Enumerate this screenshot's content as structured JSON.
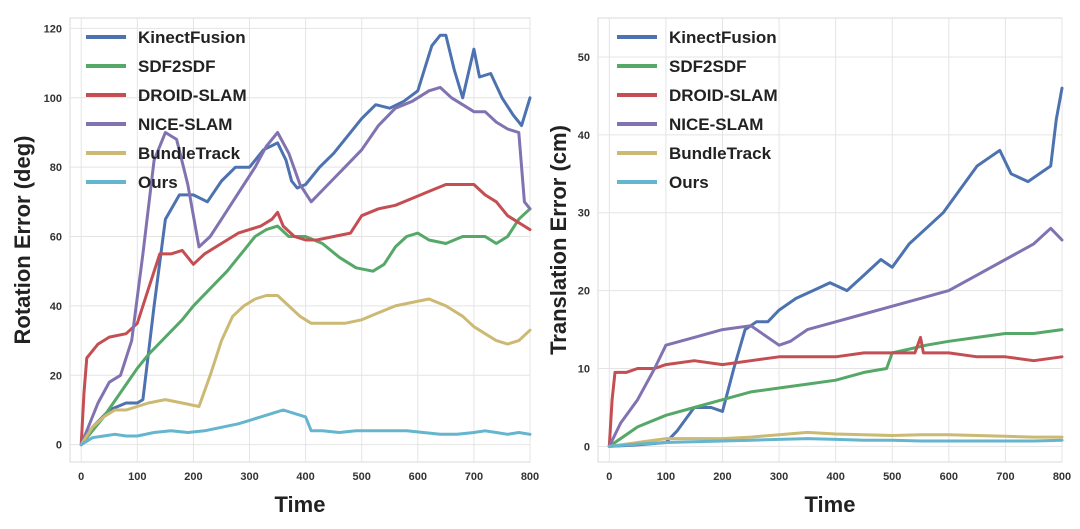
{
  "chart_data": [
    {
      "type": "line",
      "xlabel": "Time",
      "ylabel": "Rotation Error (deg)",
      "xlim": [
        -20,
        800
      ],
      "ylim": [
        -5,
        123
      ],
      "xticks": [
        0,
        100,
        200,
        300,
        400,
        500,
        600,
        700,
        800
      ],
      "yticks": [
        0,
        20,
        40,
        60,
        80,
        100,
        120
      ],
      "grid": true,
      "legend": "top-left",
      "series": [
        {
          "name": "KinectFusion",
          "color": "#4c72b0",
          "x": [
            0,
            20,
            50,
            80,
            100,
            110,
            130,
            150,
            175,
            200,
            225,
            250,
            275,
            300,
            325,
            350,
            365,
            375,
            385,
            400,
            425,
            450,
            475,
            500,
            525,
            550,
            575,
            600,
            625,
            640,
            650,
            665,
            680,
            700,
            710,
            730,
            750,
            770,
            785,
            800
          ],
          "y": [
            0,
            5,
            10,
            12,
            12,
            13,
            40,
            65,
            72,
            72,
            70,
            76,
            80,
            80,
            85,
            87,
            82,
            76,
            74,
            75,
            80,
            84,
            89,
            94,
            98,
            97,
            99,
            102,
            115,
            118,
            118,
            108,
            100,
            114,
            106,
            107,
            100,
            95,
            92,
            100
          ]
        },
        {
          "name": "SDF2SDF",
          "color": "#55a868",
          "x": [
            0,
            20,
            40,
            70,
            100,
            120,
            150,
            180,
            200,
            230,
            260,
            290,
            310,
            330,
            350,
            370,
            400,
            430,
            460,
            490,
            520,
            540,
            560,
            580,
            600,
            620,
            650,
            680,
            700,
            720,
            740,
            760,
            780,
            800
          ],
          "y": [
            0,
            4,
            8,
            15,
            22,
            26,
            31,
            36,
            40,
            45,
            50,
            56,
            60,
            62,
            63,
            60,
            60,
            58,
            54,
            51,
            50,
            52,
            57,
            60,
            61,
            59,
            58,
            60,
            60,
            60,
            58,
            60,
            65,
            68
          ]
        },
        {
          "name": "DROID-SLAM",
          "color": "#c44e52",
          "x": [
            0,
            5,
            10,
            30,
            50,
            80,
            100,
            120,
            140,
            160,
            180,
            200,
            220,
            240,
            260,
            280,
            300,
            320,
            340,
            350,
            360,
            380,
            400,
            420,
            450,
            480,
            500,
            530,
            560,
            590,
            620,
            650,
            680,
            700,
            720,
            740,
            760,
            780,
            800
          ],
          "y": [
            0,
            15,
            25,
            29,
            31,
            32,
            35,
            45,
            55,
            55,
            56,
            52,
            55,
            57,
            59,
            61,
            62,
            63,
            65,
            67,
            63,
            60,
            59,
            59,
            60,
            61,
            66,
            68,
            69,
            71,
            73,
            75,
            75,
            75,
            72,
            70,
            66,
            64,
            62
          ]
        },
        {
          "name": "NICE-SLAM",
          "color": "#8172b2",
          "x": [
            0,
            15,
            30,
            50,
            70,
            90,
            110,
            130,
            150,
            170,
            190,
            210,
            230,
            250,
            270,
            290,
            310,
            330,
            350,
            370,
            390,
            410,
            440,
            470,
            500,
            530,
            560,
            590,
            620,
            640,
            660,
            680,
            700,
            720,
            740,
            760,
            780,
            790,
            800
          ],
          "y": [
            0,
            6,
            12,
            18,
            20,
            30,
            55,
            82,
            90,
            88,
            75,
            57,
            60,
            65,
            70,
            75,
            80,
            86,
            90,
            84,
            75,
            70,
            75,
            80,
            85,
            92,
            97,
            99,
            102,
            103,
            100,
            98,
            96,
            96,
            93,
            91,
            90,
            70,
            68
          ]
        },
        {
          "name": "BundleTrack",
          "color": "#ccb974",
          "x": [
            0,
            20,
            40,
            60,
            80,
            100,
            120,
            150,
            180,
            210,
            230,
            250,
            270,
            290,
            310,
            330,
            350,
            370,
            390,
            410,
            440,
            470,
            500,
            530,
            560,
            590,
            620,
            650,
            680,
            700,
            720,
            740,
            760,
            780,
            800
          ],
          "y": [
            0,
            5,
            8,
            10,
            10,
            11,
            12,
            13,
            12,
            11,
            20,
            30,
            37,
            40,
            42,
            43,
            43,
            40,
            37,
            35,
            35,
            35,
            36,
            38,
            40,
            41,
            42,
            40,
            37,
            34,
            32,
            30,
            29,
            30,
            33
          ]
        },
        {
          "name": "Ours",
          "color": "#64b5cd",
          "x": [
            0,
            20,
            40,
            60,
            80,
            100,
            130,
            160,
            190,
            220,
            250,
            280,
            300,
            320,
            340,
            360,
            380,
            400,
            410,
            430,
            460,
            490,
            520,
            550,
            580,
            610,
            640,
            670,
            700,
            720,
            740,
            760,
            780,
            800
          ],
          "y": [
            0,
            2,
            2.5,
            3,
            2.5,
            2.5,
            3.5,
            4,
            3.5,
            4,
            5,
            6,
            7,
            8,
            9,
            10,
            9,
            8,
            4,
            4,
            3.5,
            4,
            4,
            4,
            4,
            3.5,
            3,
            3,
            3.5,
            4,
            3.5,
            3,
            3.5,
            3
          ]
        }
      ]
    },
    {
      "type": "line",
      "xlabel": "Time",
      "ylabel": "Translation Error (cm)",
      "xlim": [
        -20,
        800
      ],
      "ylim": [
        -2,
        55
      ],
      "xticks": [
        0,
        100,
        200,
        300,
        400,
        500,
        600,
        700,
        800
      ],
      "yticks": [
        0,
        10,
        20,
        30,
        40,
        50
      ],
      "grid": true,
      "legend": "top-left",
      "series": [
        {
          "name": "KinectFusion",
          "color": "#4c72b0",
          "x": [
            0,
            50,
            100,
            120,
            150,
            180,
            200,
            220,
            240,
            260,
            280,
            300,
            330,
            360,
            390,
            420,
            450,
            480,
            500,
            530,
            560,
            590,
            620,
            650,
            670,
            690,
            710,
            740,
            760,
            780,
            790,
            800
          ],
          "y": [
            0,
            0.2,
            0.5,
            2,
            5,
            5,
            4.5,
            10,
            15,
            16,
            16,
            17.5,
            19,
            20,
            21,
            20,
            22,
            24,
            23,
            26,
            28,
            30,
            33,
            36,
            37,
            38,
            35,
            34,
            35,
            36,
            42,
            46
          ]
        },
        {
          "name": "SDF2SDF",
          "color": "#55a868",
          "x": [
            0,
            50,
            100,
            150,
            200,
            250,
            300,
            350,
            400,
            450,
            490,
            500,
            530,
            560,
            600,
            650,
            700,
            750,
            800
          ],
          "y": [
            0,
            2.5,
            4,
            5,
            6,
            7,
            7.5,
            8,
            8.5,
            9.5,
            10,
            12,
            12.5,
            13,
            13.5,
            14,
            14.5,
            14.5,
            15
          ]
        },
        {
          "name": "DROID-SLAM",
          "color": "#c44e52",
          "x": [
            0,
            5,
            10,
            30,
            50,
            80,
            100,
            150,
            200,
            250,
            300,
            350,
            400,
            450,
            500,
            540,
            550,
            555,
            560,
            600,
            650,
            700,
            750,
            800
          ],
          "y": [
            0,
            6,
            9.5,
            9.5,
            10,
            10,
            10.5,
            11,
            10.5,
            11,
            11.5,
            11.5,
            11.5,
            12,
            12,
            12,
            14,
            12,
            12,
            12,
            11.5,
            11.5,
            11,
            11.5
          ]
        },
        {
          "name": "NICE-SLAM",
          "color": "#8172b2",
          "x": [
            0,
            20,
            50,
            80,
            100,
            150,
            200,
            250,
            300,
            320,
            350,
            400,
            450,
            500,
            550,
            600,
            650,
            700,
            750,
            780,
            800
          ],
          "y": [
            0,
            3,
            6,
            10,
            13,
            14,
            15,
            15.5,
            13,
            13.5,
            15,
            16,
            17,
            18,
            19,
            20,
            22,
            24,
            26,
            28,
            26.5
          ]
        },
        {
          "name": "BundleTrack",
          "color": "#ccb974",
          "x": [
            0,
            50,
            100,
            150,
            200,
            250,
            300,
            350,
            400,
            450,
            500,
            550,
            600,
            650,
            700,
            750,
            800
          ],
          "y": [
            0,
            0.5,
            1,
            1,
            1,
            1.2,
            1.5,
            1.8,
            1.6,
            1.5,
            1.4,
            1.5,
            1.5,
            1.4,
            1.3,
            1.2,
            1.2
          ]
        },
        {
          "name": "Ours",
          "color": "#64b5cd",
          "x": [
            0,
            50,
            100,
            150,
            200,
            250,
            300,
            350,
            400,
            450,
            500,
            550,
            600,
            650,
            700,
            750,
            800
          ],
          "y": [
            0,
            0.3,
            0.5,
            0.6,
            0.7,
            0.8,
            0.9,
            1,
            0.9,
            0.8,
            0.8,
            0.7,
            0.7,
            0.7,
            0.7,
            0.7,
            0.8
          ]
        }
      ]
    }
  ]
}
